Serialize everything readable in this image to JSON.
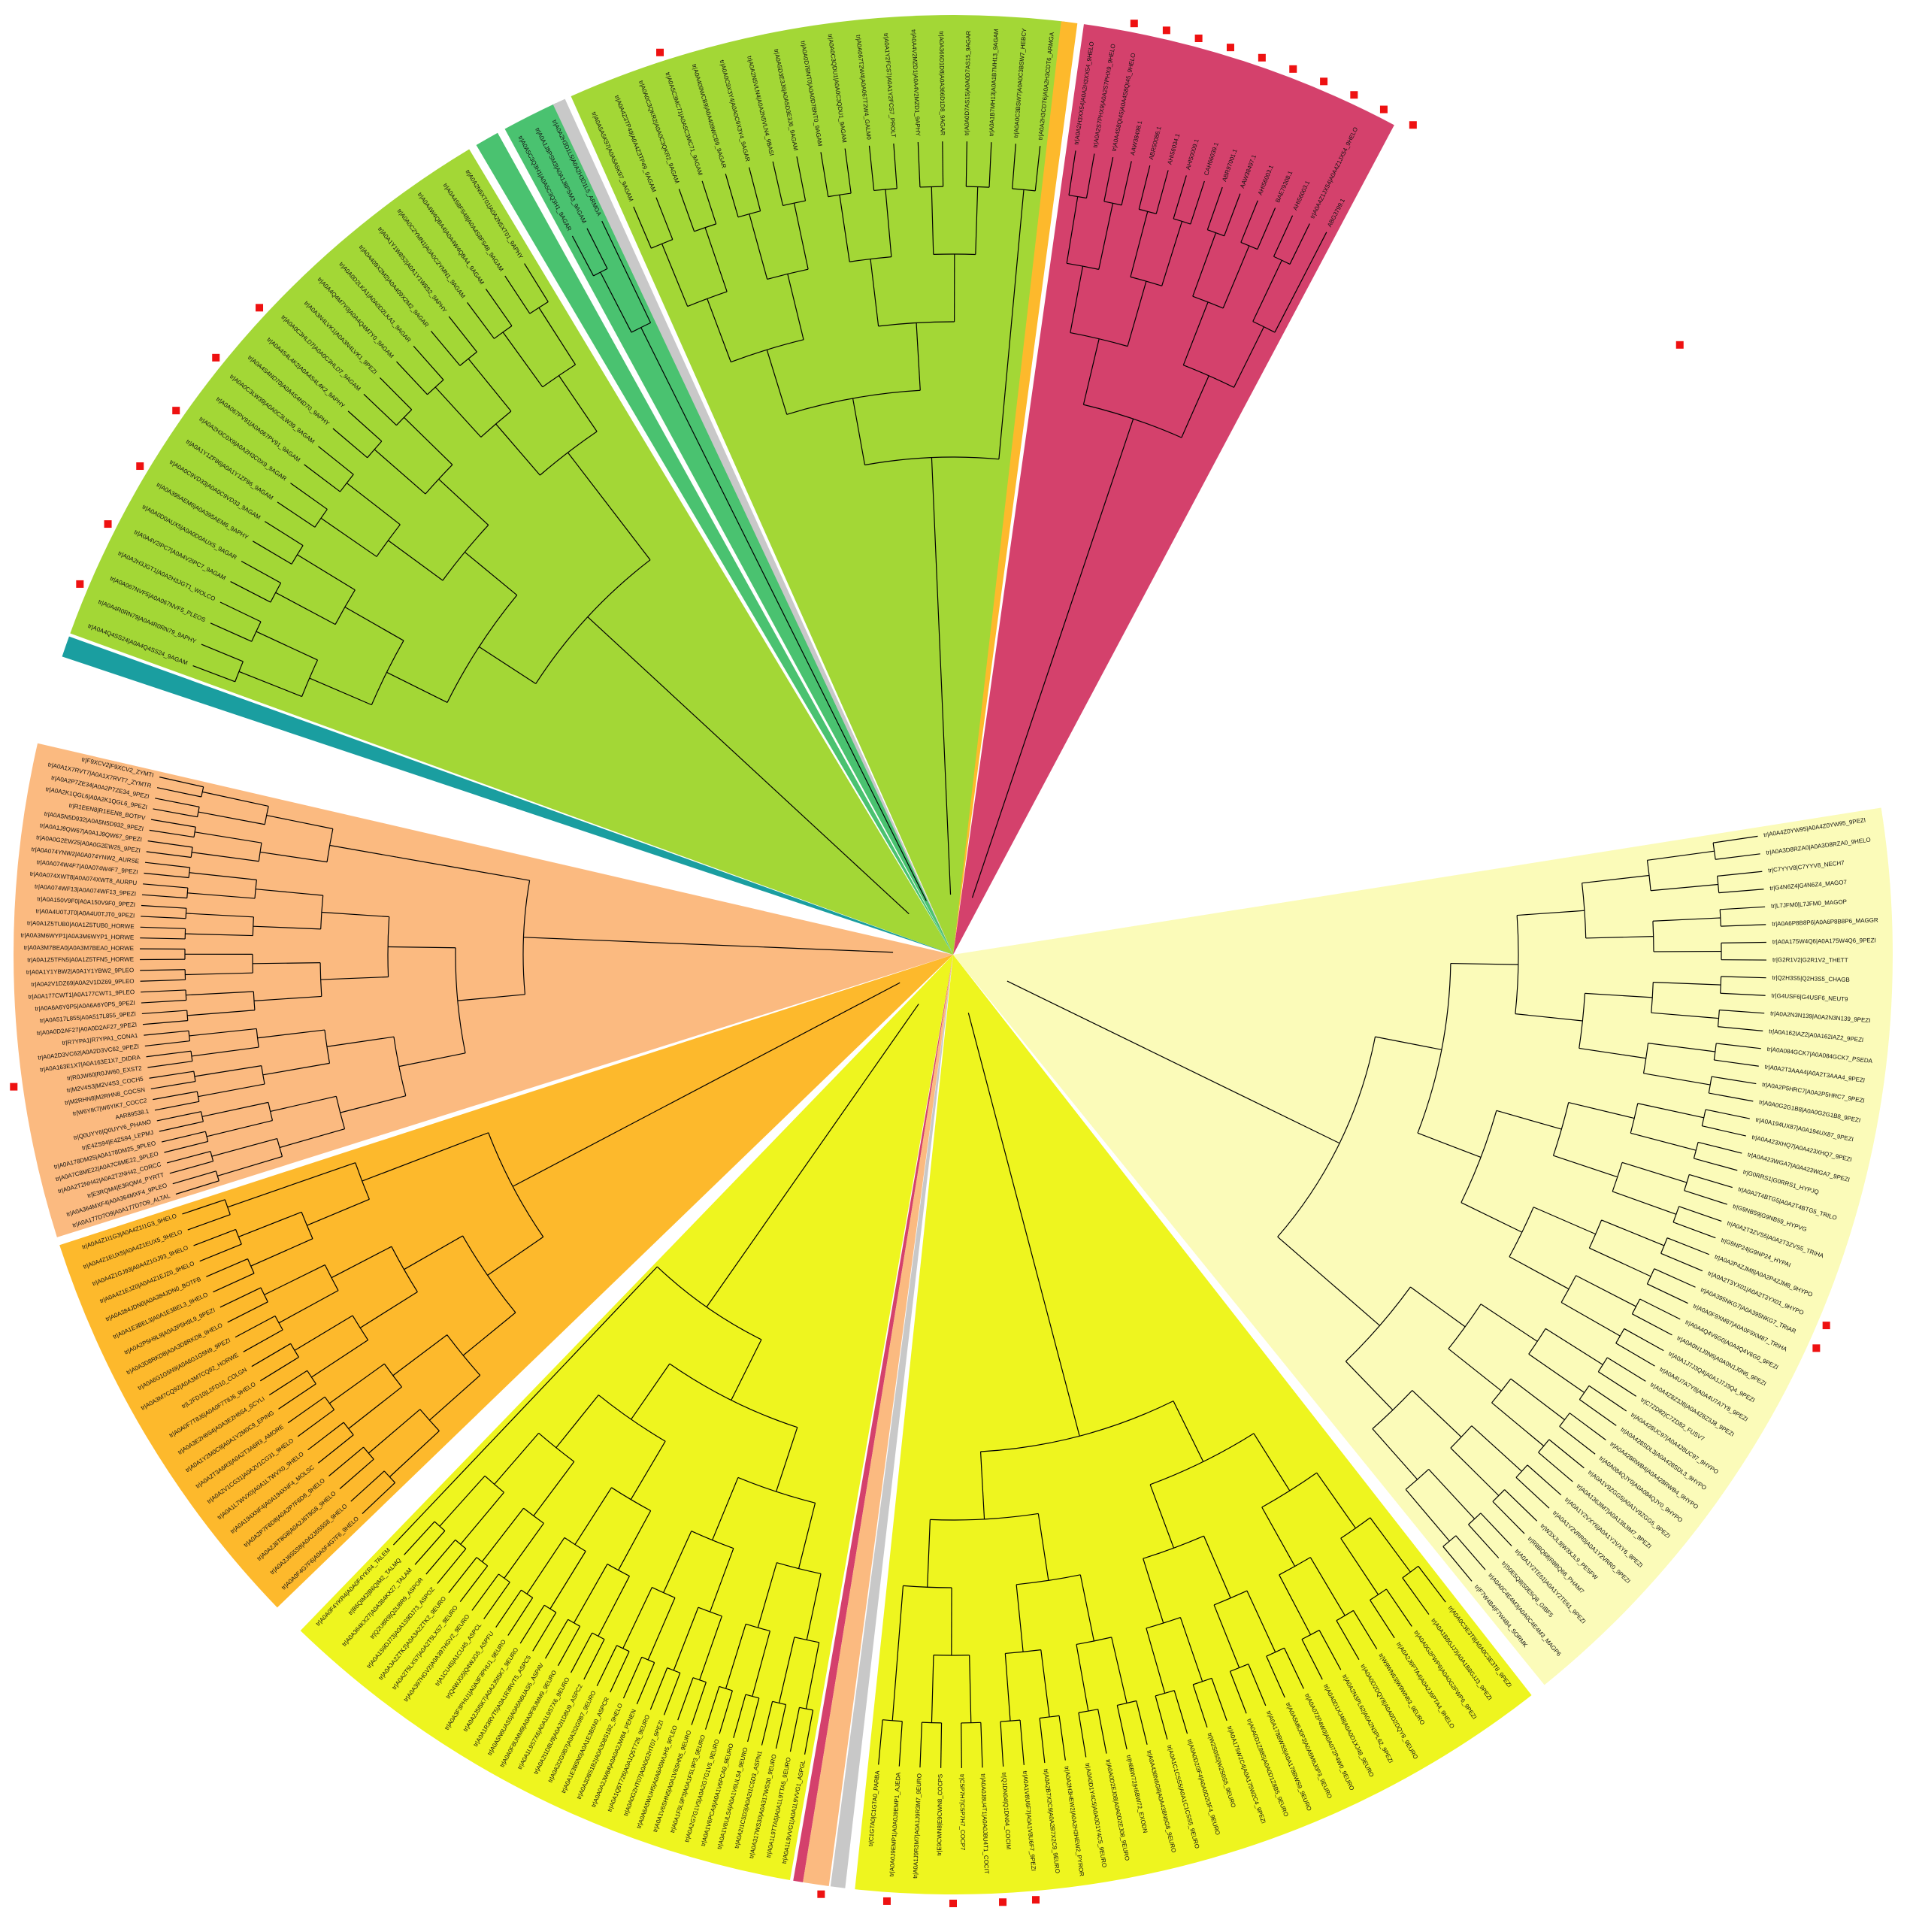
{
  "sectors": [
    {
      "name": "rose",
      "color": "#d4416c",
      "items": [
        "tr|A0A2H3XX54|A0A2H3XX54_9HELO",
        "tr|A0A2S7PHX9|A0A2S7PHX9_9HELO",
        "tr|A0A4S8QI45|A0A4S8QI45_9HELO",
        "AAW38498.1",
        "ABR50086.1",
        "AHI56034.1",
        "AHI50009.1",
        "CAH66039.1",
        "ABR97001.1",
        "AAW38497.1",
        "AHI56003.1",
        "BAE79308.1",
        "AHI56003.1",
        "tr|A0A4Z1JX54|A0A4Z1JX54_9HELO",
        "ABG3799.1"
      ]
    },
    {
      "name": "green-top",
      "color": "#a3d736",
      "items": [
        "tr|A0A5A5K97|A0A5A5K97_9AGAM",
        "tr|A0A4Z3TP49|A0A4Z3TP49_9AGAM",
        "tr|A0A0C3QKR2|A0A0C3QKR2_9AGAM",
        "tr|A0A5C3MC71|A0A5C3MC71_9AGAM",
        "tr|A0A409WCB9|A0A409WCB9_9AGAR",
        "tr|A0A0C9X3Y4|A0A0C9X3Y4_9AGAR",
        "tr|A0A2N5VLN4|A0A2N5VLN4_9BASI",
        "tr|A0A5D3E3J6|A0A5D3E3J6_9AGAM",
        "tr|A0A0D7BNT0|A0A0D7BNT0_9AGAM",
        "tr|A0A0C3QDU1|A0A0C3QDU1_9AGAM",
        "tr|A0A067T2W4|A0A067T2W4_GALM0",
        "tr|A0A1Y2FCS7|A0A1Y2FCS7_PROLT",
        "tr|A0A4V2MZD1|A0A4V2MZD1_9APHY",
        "tr|A0A366D1D8|A0A366D1D8_9AGAR",
        "tr|A0A0D7AS15|A0A0D7AS15_9AGAR",
        "tr|A0A1B7MH13|A0A1B7MH13_9AGAM",
        "tr|A0A0C3BSW7|A0A0C3BSW7_HEBCY",
        "tr|A0A2H3CDT6|A0A2H3CDT6_ARMGA"
      ]
    },
    {
      "name": "teal",
      "color": "#4ac270",
      "items": [
        "tr|A0A5C3Q3H1|A0A5C3Q3H1_9AGAR",
        "tr|A0A1J8PSM3|A0A1J8PSM3_9AGAM",
        "tr|A0A2H3D1L5|A0A2H3D1L5_ARMGA"
      ]
    },
    {
      "name": "green-left",
      "color": "#a3d736",
      "items": [
        "tr|A0A4Q4SS24|A0A4Q4SS24_9AGAM",
        "tr|A0A4R0RN79|A0A4R0RN79_9APHY",
        "tr|A0A067NVF5|A0A067NVF5_PLEOS",
        "tr|A0A2H3JGT1|A0A2H3JGT1_WOLCO",
        "tr|A0A4V2IPC7|A0A4V2IPC7_9AGAM",
        "tr|A0A0D0AUX5|A0A0D0AUX5_9AGAR",
        "tr|A0A395AEM6|A0A395AEM6_9APHY",
        "tr|A0A0C9VD33|A0A0C9VD33_9AGAM",
        "tr|A0A1Y1ZF86|A0A1Y1ZF86_9AGAM",
        "tr|A0A2H3C0X9|A0A2H3C0X9_9AGAR",
        "tr|A0A067PV91|A0A067PV91_9AGAM",
        "tr|A0A0C3LW39|A0A0C3LW39_9AGAM",
        "tr|A0A4S4ND70|A0A4S4ND70_9APHY",
        "tr|A0A4S4L4K2|A0A4S4L4K2_9APHY",
        "tr|A0A0C3HLD7|A0A0C3HLD7_9AGAM",
        "tr|A0A3N4LVK1|A0A3N4LVK1_9PEZI",
        "tr|A0A4Q4M7Y0|A0A4Q4M7Y0_9AGAM",
        "tr|A0A0D2LKA1|A0A0D2LKA1_9AGAR",
        "tr|A0A409X2M2|A0A409X2M2_9AGAR",
        "tr|A0A1Y1W8S2|A0A1Y1W8S2_9APHY",
        "tr|A0A0C2YMN1|A0A0C2YMN1_9AGAM",
        "tr|A0A4W4QBA4|A0A4W4QBA4_9AGAM",
        "tr|A0A4S8FS48|A0A4S8FS48_9AGAM",
        "tr|A0A2N5XT01|A0A2N5XT01_9APHY"
      ]
    },
    {
      "name": "peach",
      "color": "#fbba80",
      "items": [
        "tr|A0A177D7O9|A0A177D7O9_ALTAL",
        "tr|A0A364MXF4|A0A364MXF4_9PLEO",
        "tr|E3RQM4|E3RQM4_PYRTT",
        "tr|A0A2T2NH42|A0A2T2NH42_CORCC",
        "tr|A0A7C8ME22|A0A7C8ME22_9PLEO",
        "tr|A0A178DM25|A0A178DM25_9PLEO",
        "tr|E4ZS94|E4ZS94_LEPMJ",
        "tr|Q0UYY6|Q0UYY6_PHANO",
        "AAR89538.1",
        "tr|W6YIK7|W6YIK7_COCC2",
        "tr|M2RHN8|M2RHN8_COCSN",
        "tr|M2V4S3|M2V4S3_COCH5",
        "tr|R0JW60|R0JW60_EXST2",
        "tr|A0A163E1X7|A0A163E1X7_DIDRA",
        "tr|A0A2D3VC62|A0A2D3VC62_9PEZI",
        "tr|R7YPA1|R7YPA1_CONA1",
        "tr|A0A0D2AF27|A0A0D2AF27_9PEZI",
        "tr|A0A517L855|A0A517L855_9PEZI",
        "tr|A0A6A6Y0P5|A0A6A6Y0P5_9PEZI",
        "tr|A0A177CWT1|A0A177CWT1_9PLEO",
        "tr|A0A2V1DZ69|A0A2V1DZ69_9PLEO",
        "tr|A0A1Y1YBW2|A0A1Y1YBW2_9PLEO",
        "tr|A0A1Z5TFN5|A0A1Z5TFN5_HORWE",
        "tr|A0A3M7BEA0|A0A3M7BEA0_HORWE",
        "tr|A0A3M6WYP1|A0A3M6WYP1_HORWE",
        "tr|A0A1Z5TUB0|A0A1Z5TUB0_HORWE",
        "tr|A0A4U0TJT0|A0A4U0TJT0_9PEZI",
        "tr|A0A150V9F0|A0A150V9F0_9PEZI",
        "tr|A0A074WF13|A0A074WF13_9PEZI",
        "tr|A0A074XWT8|A0A074XWT8_AURPU",
        "tr|A0A074W4F7|A0A074W4F7_9PEZI",
        "tr|A0A074YNW2|A0A074YNW2_AURSE",
        "tr|A0A0G2EW25|A0A0G2EW25_9PEZI",
        "tr|A0A1J9QW67|A0A1J9QW67_9PEZI",
        "tr|A0A5N5D932|A0A5N5D932_9PEZI",
        "tr|R1EEN8|R1EEN8_BOTPV",
        "tr|A0A2K1QGL6|A0A2K1QGL6_9PEZI",
        "tr|A0A2P7ZE34|A0A2P7ZE34_9PEZI",
        "tr|A0A1X7RVT7|A0A1X7RVT7_ZYMTR",
        "tr|F9XCV2|F9XCV2_ZYMTI"
      ]
    },
    {
      "name": "orange",
      "color": "#fdb92c",
      "items": [
        "tr|A0A0F4G7F6|A0A0F4G7F6_9HELO",
        "tr|A0A2J6S5S8|A0A2J6S5S8_9HELO",
        "tr|A0A2J6T8G8|A0A2J6T8G8_9HELO",
        "tr|A0A2P7F6D8|A0A2P7F6D8_9HELO",
        "tr|A0A194XNF4|A0A194XNF4_MOLSC",
        "tr|A0A1L7WVX0|A0A1L7WVX0_9HELO",
        "tr|A0A2V1CG31|A0A2V1CG31_9HELO",
        "tr|A0A2T3A6R3|A0A2T3A6R3_AMORE",
        "tr|A0A1Y2M0C9|A0A1Y2M0C9_EPING",
        "tr|A0A3E2H6S4|A0A3E2H6S4_SCYLI",
        "tr|A0A0F7T8J6|A0A0F7T8J6_9HELO",
        "tr|L2FD10|L2FD10_COLGN",
        "tr|A0A3M7CQ92|A0A3M7CQ92_HORWE",
        "tr|A0A6G1G5N9|A0A6G1G5N9_9PEZI",
        "tr|A0A3D8RKD8|A0A3D8RKD8_9HELO",
        "tr|A0A2P5H9L9|A0A2P5H9L9_9PEZI",
        "tr|A0A1E3BEL3|A0A1E3BEL3_9HELO",
        "tr|A0A384JDN0|A0A384JDN0_BOTFB",
        "tr|A0A4Z1EJZ0|A0A4Z1EJZ0_9HELO",
        "tr|A0A4Z1GJ93|A0A4Z1GJ93_9HELO",
        "tr|A0A4Z1EUX5|A0A4Z1EUX5_9HELO",
        "tr|A0A4Z1I1G3|A0A4Z1I1G3_9HELO"
      ]
    },
    {
      "name": "yellow",
      "color": "#eef51f",
      "items": [
        "tr|A0A1L9VVG1|A0A1L9VVG1_ASPGL",
        "tr|A0A1L9TTA5|A0A1L9TTA5_9EURO",
        "tr|A0A317WS30|A0A317WS30_9EURO",
        "tr|A0A2I1C5D3|A0A2I1C5D3_ASPN1",
        "tr|A0A1V6ULS4|A0A1V6ULS4_9EURO",
        "tr|A0A1V6PCA9|A0A1V6PCA9_9EURO",
        "tr|A0A2G7G1V5|A0A2G7G1V5_9EURO",
        "tr|A0A1F5L9P3|A0A1F5L9P3_9EURO",
        "tr|A0A1V6SHN5|A0A1V6SHN5_9EURO",
        "tr|A0A6A5WUH5|A0A6A5WUH5_9PLEO",
        "tr|A0A0G2HT07|A0A0G2HT07_9PEZI",
        "tr|A0A1Q5T726|A0A1Q5T726_9EURO",
        "tr|A0A0A2JW84|A0A0A2JW84_PENEN",
        "tr|A0A3D8S1B2|A0A3D8S1B2_9HELO",
        "tr|A0A1E3B5N0|A0A1E3B5N0_ASPCR",
        "tr|A0A2I2G9B7|A0A2I2G9B7_9EURO",
        "tr|A0A2I1D8U9|A0A2I1D8U9_ASPC2",
        "tr|A0A1L9S7X6|A0A1L9S7X6_9EURO",
        "tr|A0A0F8UMM9|A0A0F8UMM9_9EURO",
        "tr|A0A5N6UAS5|A0A5N6UAS5_ASPAV",
        "tr|A0A1R3RVT5|A0A1R3RVT5_ASPC5",
        "tr|A0A2J5I5K7|A0A2J5I5K7_9EURO",
        "tr|A0A3F3PHU1|A0A3F3PHU1_9EURO",
        "tr|Q4WJG5|Q4WJG5_ASPFU",
        "tr|A1CU45|A1CU45_ASPCL",
        "tr|A0A397HGV2|A0A397HGV2_9EURO",
        "tr|A0A2T5LXS7|A0A2T5LXS7_9EURO",
        "tr|A0A3A2ZTK2|A0A3A2ZTK2_9EURO",
        "tr|A0A1S9DJ73|A0A1S9DJ73_ASPOZ",
        "tr|Q2U8R9|Q2U8R9_ASPOR",
        "tr|A0A364KX27|A0A364KX27_TALAM",
        "tr|B6QIM2|B6QIM2_TALMQ",
        "tr|A0A0F4YKR4|A0A0F4YKR4_TALEM"
      ]
    },
    {
      "name": "yellow-lower",
      "color": "#eef51f",
      "items": [
        "tr|A0A0C3E3T8|A0A0C3E3T8_9PEZI",
        "tr|A0A1B8GJJ3|A0A1B8GJJ3_9PEZI",
        "tr|A0A0G2FWP6|A0A0G2FWP6_9PEZI",
        "tr|A0A2J6PTA4|A0A2J6PTA4_9HELO",
        "tr|W9WN63|W9WN63_9EURO",
        "tr|A0A0D2DQY8|A0A0D2DQY8_9EURO",
        "tr|A0A2N3PL62|A0A2N3PL62_9PEZI",
        "tr|A0A0D1XJ48|A0A0D1XJ48_9EURO",
        "tr|A0A072P4W0|A0A072P4W0_9EURO",
        "tr|A0A5M6J0P3|A0A5M6J0P3_9EURO",
        "tr|A0A178BWS9|A0A178BWS9_9EURO",
        "tr|A0A0D1Z8B5|A0A0D1Z8B5_9EURO",
        "tr|A0A175W2C4|A0A175W2C4_9PEZI",
        "tr|W2S0S5|W2S0S5_9EURO",
        "tr|A0A0D2I3F4|A0A0D2I3F4_9EURO",
        "tr|A0A1C1CSS5|A0A1C1CSS5_9EURO",
        "tr|A0A438N6G8|A0A438N6G8_9EURO",
        "tr|H6BW72|H6BW72_EXODN",
        "tr|A0A0D2EJ08|A0A0D2EJ08_9EURO",
        "tr|A0A0D1Y4C5|A0A0D1Y4C5_9EURO",
        "tr|A0A2H3HEW2|A0A2H3HEW2_PYROR",
        "tr|A0A2B7X2C9|A0A2B7X2C9_9EURO",
        "tr|A0A1V8U6F7|A0A1V8U6F7_9PEZI",
        "tr|Q1DN04|Q1DN04_COCIM",
        "tr|A0A0J8U4T1|A0A0J8U4T1_COCIT",
        "tr|C5P7H7|C5P7H7_COCP7",
        "tr|E9CWN8|E9CWN8_COCPS",
        "tr|A0A1J9R3M7|A0A1J9R3M7_9EURO",
        "tr|A0A0J9EMP1|A0A0J9EMP1_AJEDA",
        "tr|C1GTA0|C1GTA0_PARBA"
      ]
    },
    {
      "name": "cream",
      "color": "#fbfbb9",
      "items": [
        "tr|A0A4Z0YW95|A0A4Z0YW95_9PEZI",
        "tr|A0A3D8RZA0|A0A3D8RZA0_9HELO",
        "tr|C7YYV8|C7YYV8_NECH7",
        "tr|G4N6Z4|G4N6Z4_MAGO7",
        "tr|L7JFM0|L7JFM0_MAGOP",
        "tr|A0A6P8B8P6|A0A6P8B8P6_MAGGR",
        "tr|A0A175W4Q6|A0A175W4Q6_9PEZI",
        "tr|G2R1V2|G2R1V2_THETT",
        "tr|Q2H3S5|Q2H3S5_CHAGB",
        "tr|G4USF6|G4USF6_NEUT9",
        "tr|A0A2N3N139|A0A2N3N139_9PEZI",
        "tr|A0A162IAZ2|A0A162IAZ2_9PEZI",
        "tr|A0A084GCK7|A0A084GCK7_PSEDA",
        "tr|A0A2T3AAA4|A0A2T3AAA4_9PEZI",
        "tr|A0A2P5HRC7|A0A2P5HRC7_9PEZI",
        "tr|A0A0G2G1B8|A0A0G2G1B8_9PEZI",
        "tr|A0A194UX87|A0A194UX87_9PEZI",
        "tr|A0A423XHQ7|A0A423XHQ7_9PEZI",
        "tr|A0A423WGA7|A0A423WGA7_9PEZI",
        "tr|G0RRS1|G0RRS1_HYPJQ",
        "tr|A0A2T4BTG5|A0A2T4BTG5_TRILO",
        "tr|G9NB59|G9NB59_HYPVG",
        "tr|A0A2T3ZVS5|A0A2T3ZVS5_TRIHA",
        "tr|G9NP24|G9NP24_HYPAI",
        "tr|A0A2P4ZJM8|A0A2P4ZJM8_9HYPO",
        "tr|A0A2T3YX01|A0A2T3YX01_9HYPO",
        "tr|A0A395NKG7|A0A395NKG7_TRIAR",
        "tr|A0A0F9XM87|A0A0F9XM87_TRIHA",
        "tr|A0A4Q4V6G0|A0A4Q4V6G0_9PEZI",
        "tr|A0A0N1J0N6|A0A0N1J0N6_9PEZI",
        "tr|A0A1J7J3Q4|A0A1J7J3Q4_9PEZI",
        "tr|A0A4U7A7Y8|A0A4U7A7Y8_9PEZI",
        "tr|A0A4Z8Z3J8|A0A4Z8Z3J8_9PEZI",
        "tr|C7ZD82|C7ZD82_FUSV7",
        "tr|A0A428UC97|A0A428UC97_9HYPO",
        "tr|A0A428SDL3|A0A428SDL3_9HYPO",
        "tr|A0A428RWB4|A0A428RWB4_9HYPO",
        "tr|A0A084QJY0|A0A084QJY0_9HYPO",
        "tr|A0A1V9ZGG5|A0A1V9ZGG5_9PEZI",
        "tr|A0A136JIM7|A0A136JIM7_9PEZI",
        "tr|A0A1Y2VXY6|A0A1Y2VXY6_9PEZI",
        "tr|A0A1Y2VRR0|A0A1Y2VRR0_9PEZI",
        "tr|W3XJL9|W3XJL9_PESFW",
        "tr|R8BQ68|R8BQ68_PHAM7",
        "tr|A0A1Y2TE61|A0A1Y2TE61_9PEZI",
        "tr|S0E5Q8|S0E5Q8_GIBF5",
        "tr|A0A0C4E4M3|A0A0C4E4M3_MAGP6",
        "tr|F7W4B4|F7W4B4_SORMK"
      ]
    }
  ],
  "highlight_label": "tr|A0A428UC97|A0A428UC97_9HYPO",
  "colors": {
    "rose": "#d4416c",
    "green": "#a3d736",
    "teal": "#4ac270",
    "blue": "#1a9ea0",
    "peach": "#fbba80",
    "orange": "#fdb92c",
    "yellow": "#eef51f",
    "cream": "#fbfbb9",
    "grey": "#c8c8c8",
    "marker": "#ee1111",
    "highlight_text": "#1f33d6"
  }
}
